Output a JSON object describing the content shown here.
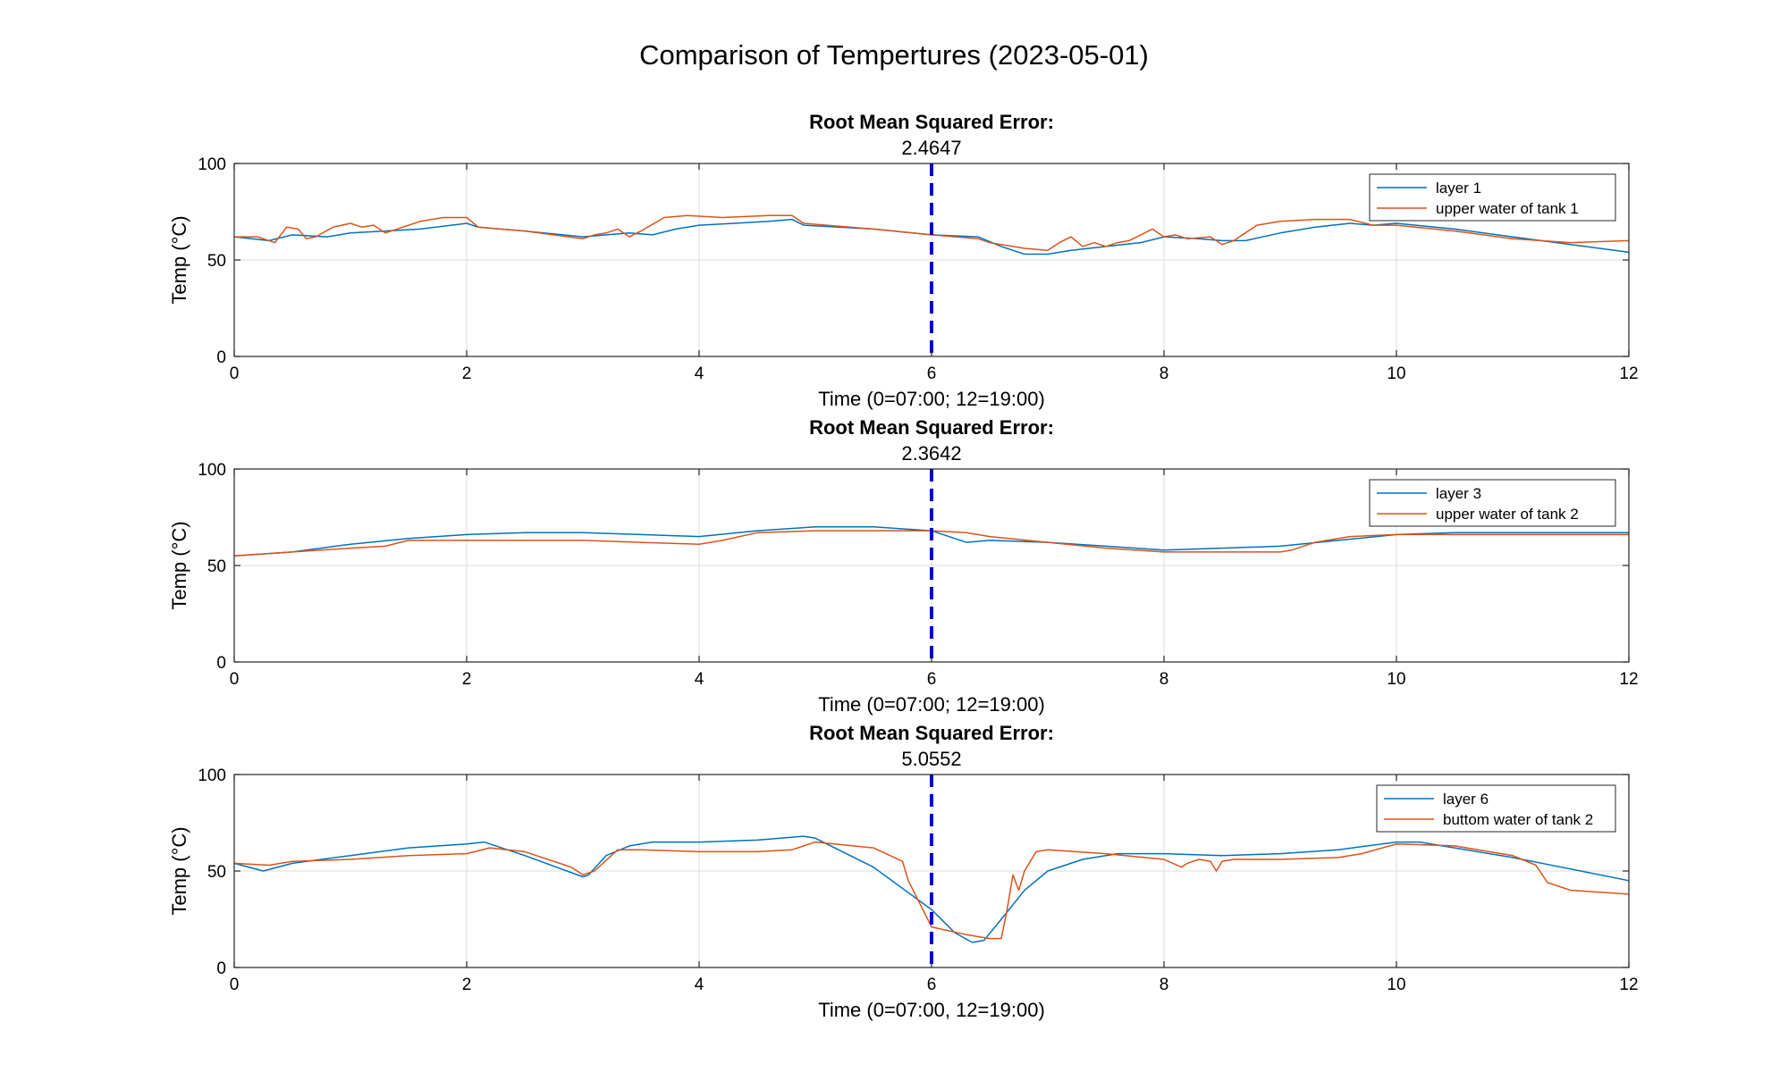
{
  "figure": {
    "title": "Comparison of Tempertures (2023-05-01)"
  },
  "colors": {
    "series1": "#0072BD",
    "series2": "#D95319",
    "vline": "#0000CC"
  },
  "chart_data": [
    {
      "type": "line",
      "title": "Root Mean Squared Error:",
      "subtitle": "2.4647",
      "xlabel": "Time (0=07:00; 12=19:00)",
      "ylabel": "Temp (°C)",
      "xlim": [
        0,
        12
      ],
      "ylim": [
        0,
        100
      ],
      "xticks": [
        0,
        2,
        4,
        6,
        8,
        10,
        12
      ],
      "yticks": [
        0,
        50,
        100
      ],
      "grid": true,
      "legend_position": "top-right",
      "vline": 6,
      "series": [
        {
          "name": "layer 1",
          "x": [
            0,
            0.3,
            0.5,
            0.8,
            1.0,
            1.3,
            1.6,
            2.0,
            2.1,
            2.5,
            3.0,
            3.2,
            3.4,
            3.6,
            3.8,
            4.0,
            4.3,
            4.6,
            4.8,
            4.9,
            5.5,
            6.0,
            6.4,
            6.6,
            6.8,
            7.0,
            7.2,
            7.5,
            7.8,
            8.0,
            8.3,
            8.5,
            8.7,
            9.0,
            9.3,
            9.6,
            9.8,
            10.0,
            10.5,
            11.0,
            11.5,
            12.0
          ],
          "y": [
            62,
            60,
            63,
            62,
            64,
            65,
            66,
            69,
            67,
            65,
            62,
            63,
            64,
            63,
            66,
            68,
            69,
            70,
            71,
            68,
            66,
            63,
            62,
            57,
            53,
            53,
            55,
            57,
            59,
            62,
            61,
            60,
            60,
            64,
            67,
            69,
            68,
            69,
            66,
            62,
            58,
            54
          ]
        },
        {
          "name": "upper water of tank 1",
          "x": [
            0,
            0.2,
            0.35,
            0.45,
            0.55,
            0.62,
            0.7,
            0.85,
            1.0,
            1.1,
            1.2,
            1.3,
            1.4,
            1.6,
            1.8,
            2.0,
            2.1,
            2.5,
            3.0,
            3.1,
            3.2,
            3.3,
            3.4,
            3.5,
            3.7,
            3.9,
            4.2,
            4.6,
            4.8,
            4.9,
            5.5,
            6.0,
            6.4,
            6.5,
            6.8,
            7.0,
            7.1,
            7.2,
            7.3,
            7.4,
            7.5,
            7.6,
            7.7,
            7.8,
            7.9,
            8.0,
            8.1,
            8.2,
            8.4,
            8.5,
            8.6,
            8.8,
            9.0,
            9.3,
            9.6,
            9.8,
            10.0,
            10.5,
            11.0,
            11.5,
            12.0
          ],
          "y": [
            62,
            62,
            59,
            67,
            66,
            61,
            62,
            67,
            69,
            67,
            68,
            64,
            66,
            70,
            72,
            72,
            67,
            65,
            61,
            63,
            64,
            66,
            62,
            65,
            72,
            73,
            72,
            73,
            73,
            69,
            66,
            63,
            61,
            59,
            56,
            55,
            59,
            62,
            57,
            59,
            57,
            59,
            60,
            63,
            66,
            62,
            63,
            61,
            62,
            58,
            60,
            68,
            70,
            71,
            71,
            68,
            68,
            65,
            61,
            59,
            60
          ]
        }
      ]
    },
    {
      "type": "line",
      "title": "Root Mean Squared Error:",
      "subtitle": "2.3642",
      "xlabel": "Time (0=07:00; 12=19:00)",
      "ylabel": "Temp (°C)",
      "xlim": [
        0,
        12
      ],
      "ylim": [
        0,
        100
      ],
      "xticks": [
        0,
        2,
        4,
        6,
        8,
        10,
        12
      ],
      "yticks": [
        0,
        50,
        100
      ],
      "grid": true,
      "legend_position": "top-right",
      "vline": 6,
      "series": [
        {
          "name": "layer 3",
          "x": [
            0,
            0.5,
            1.0,
            1.5,
            2.0,
            2.5,
            3.0,
            3.5,
            4.0,
            4.5,
            5.0,
            5.5,
            6.0,
            6.2,
            6.3,
            6.5,
            7.0,
            7.5,
            8.0,
            8.5,
            9.0,
            9.5,
            10.0,
            10.5,
            11.0,
            12.0
          ],
          "y": [
            55,
            57,
            61,
            64,
            66,
            67,
            67,
            66,
            65,
            68,
            70,
            70,
            68,
            64,
            62,
            63,
            62,
            60,
            58,
            59,
            60,
            63,
            66,
            67,
            67,
            67
          ]
        },
        {
          "name": "upper water of tank 2",
          "x": [
            0,
            0.5,
            1.0,
            1.3,
            1.5,
            2.0,
            3.0,
            3.5,
            4.0,
            4.2,
            4.5,
            5.0,
            6.0,
            6.3,
            6.5,
            7.0,
            7.5,
            8.0,
            8.5,
            9.0,
            9.1,
            9.3,
            9.6,
            10.0,
            10.5,
            11.0,
            12.0
          ],
          "y": [
            55,
            57,
            59,
            60,
            63,
            63,
            63,
            62,
            61,
            63,
            67,
            68,
            68,
            67,
            65,
            62,
            59,
            57,
            57,
            57,
            58,
            62,
            65,
            66,
            66,
            66,
            66
          ]
        }
      ]
    },
    {
      "type": "line",
      "title": "Root Mean Squared Error:",
      "subtitle": "5.0552",
      "xlabel": "Time (0=07:00, 12=19:00)",
      "ylabel": "Temp (°C)",
      "xlim": [
        0,
        12
      ],
      "ylim": [
        0,
        100
      ],
      "xticks": [
        0,
        2,
        4,
        6,
        8,
        10,
        12
      ],
      "yticks": [
        0,
        50,
        100
      ],
      "grid": true,
      "legend_position": "top-right",
      "vline": 6,
      "series": [
        {
          "name": "layer 6",
          "x": [
            0,
            0.25,
            0.5,
            1.0,
            1.5,
            2.0,
            2.15,
            2.5,
            3.0,
            3.05,
            3.2,
            3.4,
            3.6,
            4.0,
            4.5,
            4.9,
            5.0,
            5.5,
            6.0,
            6.2,
            6.35,
            6.45,
            6.6,
            6.8,
            7.0,
            7.3,
            7.6,
            8.0,
            8.5,
            9.0,
            9.5,
            10.0,
            10.2,
            10.5,
            11.0,
            11.5,
            12.0
          ],
          "y": [
            54,
            50,
            54,
            58,
            62,
            64,
            65,
            58,
            47,
            48,
            58,
            63,
            65,
            65,
            66,
            68,
            67,
            52,
            30,
            18,
            13,
            14,
            25,
            40,
            50,
            56,
            59,
            59,
            58,
            59,
            61,
            65,
            65,
            62,
            57,
            51,
            45
          ]
        },
        {
          "name": "buttom water of tank 2",
          "x": [
            0,
            0.3,
            0.5,
            1.0,
            1.5,
            2.0,
            2.2,
            2.5,
            2.9,
            3.0,
            3.1,
            3.3,
            3.5,
            4.0,
            4.5,
            4.8,
            5.0,
            5.5,
            5.75,
            5.8,
            6.0,
            6.3,
            6.5,
            6.6,
            6.65,
            6.7,
            6.75,
            6.8,
            6.9,
            7.0,
            7.5,
            8.0,
            8.15,
            8.2,
            8.3,
            8.4,
            8.45,
            8.5,
            8.6,
            9.0,
            9.5,
            9.7,
            10.0,
            10.5,
            11.0,
            11.2,
            11.3,
            11.5,
            12.0
          ],
          "y": [
            54,
            53,
            55,
            56,
            58,
            59,
            62,
            60,
            52,
            48,
            50,
            61,
            61,
            60,
            60,
            61,
            65,
            62,
            55,
            45,
            21,
            17,
            15,
            15,
            30,
            48,
            40,
            50,
            60,
            61,
            59,
            56,
            52,
            54,
            56,
            55,
            50,
            55,
            56,
            56,
            57,
            59,
            64,
            63,
            58,
            53,
            44,
            40,
            38
          ]
        }
      ]
    }
  ]
}
